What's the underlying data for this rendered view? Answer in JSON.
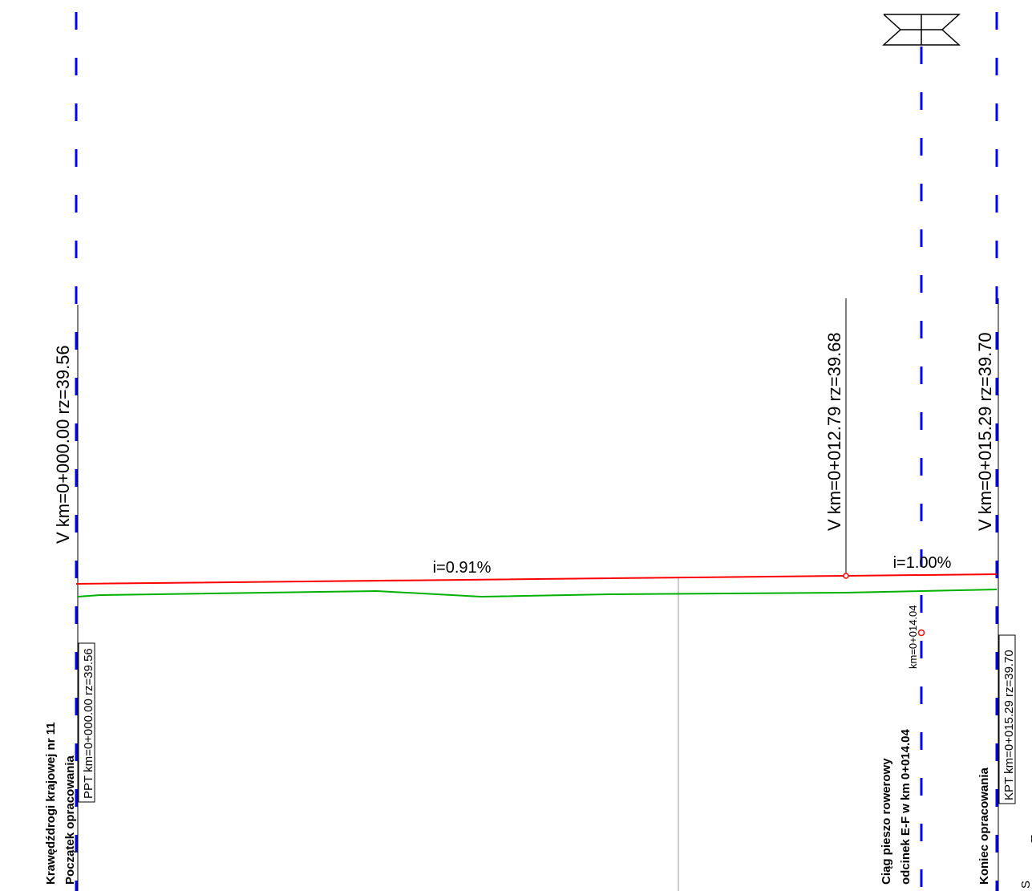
{
  "colors": {
    "axis": "#0000ff",
    "design_grade": "#ff0000",
    "terrain": "#00b000",
    "ink": "#000000",
    "marker": "#ff0000",
    "divider": "#999999",
    "background": "#ffffff"
  },
  "vertices": {
    "v_start": "V  km=0+000.00  rz=39.56",
    "v_mid": "V  km=0+012.79  rz=39.68",
    "v_end": "V  km=0+015.29  rz=39.70"
  },
  "grades": {
    "grade_1": "i=0.91%",
    "grade_2": "i=1.00%"
  },
  "crossing": {
    "chainage": "km=0+014.04",
    "line1": "Ciąg pieszo rowerowy",
    "line2": "odcinek E-F w km 0+014.04"
  },
  "start_note": {
    "line1": "Krawędźdrogi krajowej nr 11",
    "line2": "Początek opracowania",
    "box": "PPT  km=0+000.00  rz=39.56"
  },
  "end_note": {
    "line1": "Koniec opracowania",
    "box": "KPT  km=0+015.29  rz=39.70"
  },
  "profile": {
    "design_elevations": {
      "start": 39.56,
      "vertex": 39.68,
      "end": 39.7
    },
    "icon": "bridge-symbol-icon"
  }
}
